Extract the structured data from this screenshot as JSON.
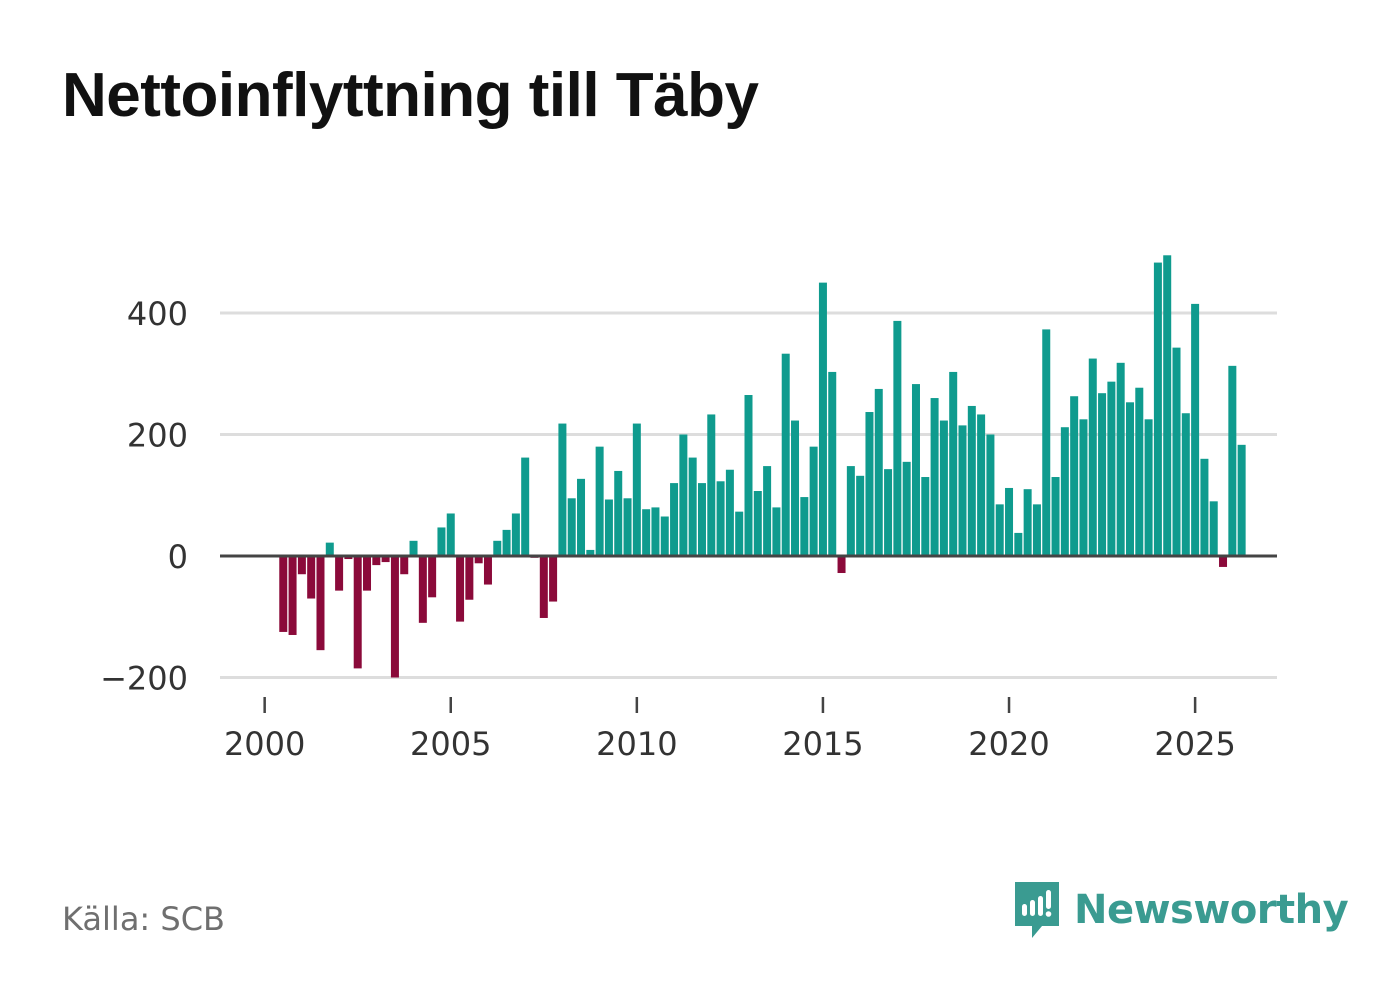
{
  "title": "Nettoinflyttning till Täby",
  "source": "Källa: SCB",
  "brand": {
    "name": "Newsworthy",
    "icon": "newsworthy-logo-icon",
    "color": "#3a9b91"
  },
  "colors": {
    "positive": "#0f9b8e",
    "negative": "#8b0a3a",
    "grid": "#dddddd",
    "zero_line": "#444444",
    "text": "#333333"
  },
  "chart_data": {
    "type": "bar",
    "title": "Nettoinflyttning till Täby",
    "xlabel": "",
    "ylabel": "",
    "x_start": 2000.0,
    "x_step": 0.25,
    "xlim": [
      1998.8,
      2027.2
    ],
    "ylim": [
      -200,
      400
    ],
    "yticks": [
      -200,
      0,
      200,
      400
    ],
    "ytick_labels": [
      "−200",
      "0",
      "200",
      "400"
    ],
    "xticks": [
      2000,
      2005,
      2010,
      2015,
      2020,
      2025
    ],
    "xtick_labels": [
      "2000",
      "2005",
      "2010",
      "2015",
      "2020",
      "2025"
    ],
    "grid": true,
    "values": [
      0,
      -125,
      -130,
      -30,
      -70,
      -155,
      22,
      -57,
      -5,
      -185,
      -57,
      -15,
      -10,
      -200,
      -30,
      25,
      -110,
      -68,
      47,
      70,
      -108,
      -72,
      -12,
      -47,
      25,
      43,
      70,
      162,
      -3,
      -102,
      -75,
      218,
      95,
      127,
      10,
      180,
      93,
      140,
      95,
      218,
      77,
      80,
      65,
      120,
      200,
      162,
      120,
      233,
      123,
      142,
      73,
      265,
      107,
      148,
      80,
      333,
      223,
      97,
      180,
      450,
      303,
      -28,
      148,
      132,
      237,
      275,
      143,
      387,
      155,
      283,
      130,
      260,
      223,
      303,
      215,
      247,
      233,
      200,
      85,
      112,
      38,
      110,
      85,
      373,
      130,
      212,
      263,
      225,
      325,
      268,
      287,
      318,
      253,
      277,
      225,
      483,
      495,
      343,
      235,
      415,
      160,
      90,
      -18,
      313,
      183
    ]
  }
}
